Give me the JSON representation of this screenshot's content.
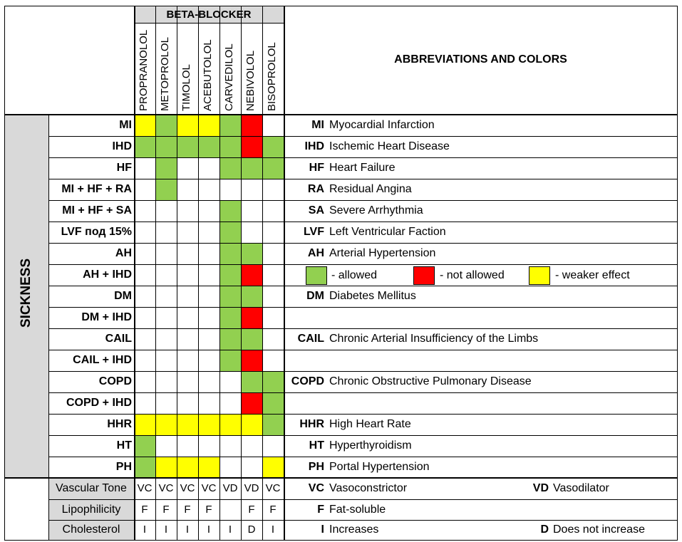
{
  "header": {
    "beta_blocker_title": "BETA-BLOCKER",
    "abbreviations_title": "ABBREVIATIONS AND COLORS",
    "sickness_label": "SICKNESS"
  },
  "drugs": [
    "PROPRANOLOL",
    "METOPROLOL",
    "TIMOLOL",
    "ACEBUTOLOL",
    "CARVEDILOL",
    "NEBIVOLOL",
    "BISOPROLOL"
  ],
  "colors": {
    "G": "#92d050",
    "R": "#ff0000",
    "Y": "#ffff00",
    "W": "#ffffff",
    "grey": "#d9d9d9"
  },
  "sickness_rows": [
    {
      "label": "MI",
      "cells": [
        "Y",
        "G",
        "Y",
        "Y",
        "G",
        "R",
        "W"
      ]
    },
    {
      "label": "IHD",
      "cells": [
        "G",
        "G",
        "G",
        "G",
        "G",
        "R",
        "G"
      ]
    },
    {
      "label": "HF",
      "cells": [
        "W",
        "G",
        "W",
        "W",
        "G",
        "G",
        "G"
      ]
    },
    {
      "label": "MI + HF + RA",
      "cells": [
        "W",
        "G",
        "W",
        "W",
        "W",
        "W",
        "W"
      ]
    },
    {
      "label": "MI + HF + SA",
      "cells": [
        "W",
        "W",
        "W",
        "W",
        "G",
        "W",
        "W"
      ]
    },
    {
      "label": "LVF под 15%",
      "cells": [
        "W",
        "W",
        "W",
        "W",
        "G",
        "W",
        "W"
      ]
    },
    {
      "label": "AH",
      "cells": [
        "W",
        "W",
        "W",
        "W",
        "G",
        "G",
        "W"
      ]
    },
    {
      "label": "AH + IHD",
      "cells": [
        "W",
        "W",
        "W",
        "W",
        "G",
        "R",
        "W"
      ]
    },
    {
      "label": "DM",
      "cells": [
        "W",
        "W",
        "W",
        "W",
        "G",
        "G",
        "W"
      ]
    },
    {
      "label": "DM + IHD",
      "cells": [
        "W",
        "W",
        "W",
        "W",
        "G",
        "R",
        "W"
      ]
    },
    {
      "label": "CAIL",
      "cells": [
        "W",
        "W",
        "W",
        "W",
        "G",
        "G",
        "W"
      ]
    },
    {
      "label": "CAIL + IHD",
      "cells": [
        "W",
        "W",
        "W",
        "W",
        "G",
        "R",
        "W"
      ]
    },
    {
      "label": "COPD",
      "cells": [
        "W",
        "W",
        "W",
        "W",
        "W",
        "G",
        "G"
      ]
    },
    {
      "label": "COPD + IHD",
      "cells": [
        "W",
        "W",
        "W",
        "W",
        "W",
        "R",
        "G"
      ]
    },
    {
      "label": "HHR",
      "cells": [
        "Y",
        "Y",
        "Y",
        "Y",
        "Y",
        "Y",
        "G"
      ]
    },
    {
      "label": "HT",
      "cells": [
        "G",
        "W",
        "W",
        "W",
        "W",
        "W",
        "W"
      ]
    },
    {
      "label": "PH",
      "cells": [
        "G",
        "Y",
        "Y",
        "Y",
        "W",
        "W",
        "Y"
      ]
    }
  ],
  "abbreviations": [
    {
      "key": "MI",
      "def": "Myocardial Infarction"
    },
    {
      "key": "IHD",
      "def": "Ischemic Heart Disease"
    },
    {
      "key": "HF",
      "def": "Heart Failure"
    },
    {
      "key": "RA",
      "def": "Residual Angina"
    },
    {
      "key": "SA",
      "def": "Severe Arrhythmia"
    },
    {
      "key": "LVF",
      "def": "Left Ventricular Faction"
    },
    {
      "key": "AH",
      "def": "Arterial Hypertension"
    },
    null,
    {
      "key": "DM",
      "def": "Diabetes Mellitus"
    },
    null,
    {
      "key": "CAIL",
      "def": "Chronic Arterial Insufficiency of the Limbs"
    },
    null,
    {
      "key": "COPD",
      "def": "Chronic Obstructive Pulmonary Disease"
    },
    null,
    {
      "key": "HHR",
      "def": "High Heart Rate"
    },
    {
      "key": "HT",
      "def": "Hyperthyroidism"
    },
    {
      "key": "PH",
      "def": "Portal Hypertension"
    }
  ],
  "legend": {
    "allowed": "- allowed",
    "not_allowed": "- not allowed",
    "weaker": "- weaker effect"
  },
  "properties": [
    {
      "label": "Vascular Tone",
      "cells": [
        "VC",
        "VC",
        "VC",
        "VC",
        "VD",
        "VD",
        "VC"
      ],
      "notes": [
        {
          "key": "VC",
          "def": "Vasoconstrictor"
        },
        {
          "key": "VD",
          "def": "Vasodilator"
        }
      ]
    },
    {
      "label": "Lipophilicity",
      "cells": [
        "F",
        "F",
        "F",
        "F",
        "",
        "F",
        "F"
      ],
      "notes": [
        {
          "key": "F",
          "def": "Fat-soluble"
        }
      ]
    },
    {
      "label": "Cholesterol",
      "cells": [
        "I",
        "I",
        "I",
        "I",
        "I",
        "D",
        "I"
      ],
      "notes": [
        {
          "key": "I",
          "def": "Increases"
        },
        {
          "key": "D",
          "def": "Does not increase"
        }
      ]
    }
  ]
}
